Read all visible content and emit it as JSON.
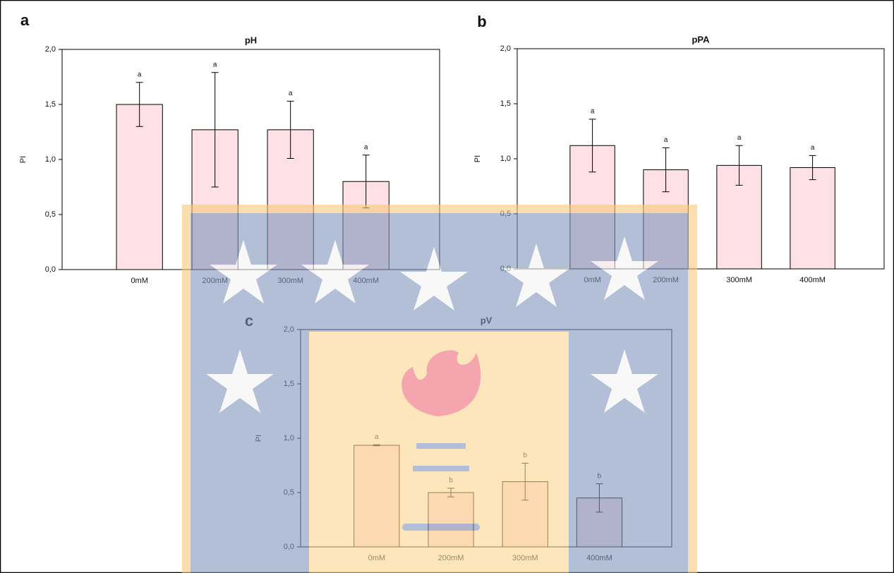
{
  "chart_data": [
    {
      "type": "bar",
      "panel": "a",
      "title": "pH",
      "ylabel": "PI",
      "color": "#fde1e6",
      "categories": [
        "0mM",
        "200mM",
        "300mM",
        "400mM"
      ],
      "values": [
        1.5,
        1.27,
        1.27,
        0.8
      ],
      "errors": [
        0.2,
        0.52,
        0.26,
        0.24
      ],
      "labels": [
        "a",
        "a",
        "a",
        "a"
      ],
      "ylim": [
        0,
        2
      ],
      "yticks": [
        {
          "value": 0,
          "label": "0,0"
        },
        {
          "value": 0.5,
          "label": "0,5"
        },
        {
          "value": 1,
          "label": "1,0"
        },
        {
          "value": 1.5,
          "label": "1,5"
        },
        {
          "value": 2,
          "label": "2,0"
        }
      ]
    },
    {
      "type": "bar",
      "panel": "b",
      "title": "pPA",
      "ylabel": "PI",
      "color": "#fde1e6",
      "categories": [
        "0mM",
        "200mM",
        "300mM",
        "400mM"
      ],
      "values": [
        1.12,
        0.9,
        0.94,
        0.92
      ],
      "errors": [
        0.24,
        0.2,
        0.18,
        0.11
      ],
      "labels": [
        "a",
        "a",
        "a",
        "a"
      ],
      "ylim": [
        0,
        2
      ],
      "yticks": [
        {
          "value": 0,
          "label": "0,0"
        },
        {
          "value": 0.5,
          "label": "0,5"
        },
        {
          "value": 1,
          "label": "1,0"
        },
        {
          "value": 1.5,
          "label": "1,5"
        },
        {
          "value": 2,
          "label": "2,0"
        }
      ]
    },
    {
      "type": "bar",
      "panel": "c",
      "title": "pV",
      "ylabel": "PI",
      "color": "#fde1e6",
      "categories": [
        "0mM",
        "200mM",
        "300mM",
        "400mM"
      ],
      "values": [
        0.935,
        0.5,
        0.6,
        0.45
      ],
      "errors": [
        0.005,
        0.04,
        0.17,
        0.13
      ],
      "labels": [
        "a",
        "b",
        "b",
        "b"
      ],
      "ylim": [
        0,
        2
      ],
      "yticks": [
        {
          "value": 0,
          "label": "0,0"
        },
        {
          "value": 0.5,
          "label": "0,5"
        },
        {
          "value": 1,
          "label": "1,0"
        },
        {
          "value": 1.5,
          "label": "1,5"
        },
        {
          "value": 2,
          "label": "2,0"
        }
      ]
    }
  ]
}
